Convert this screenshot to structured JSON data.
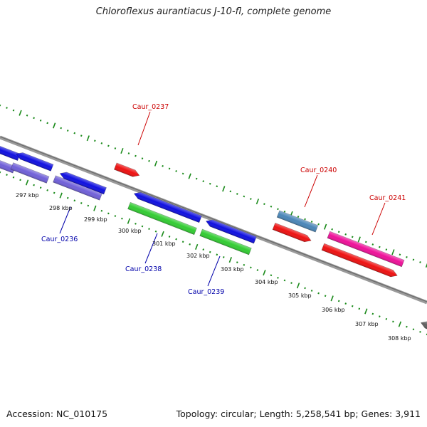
{
  "title": "Chloroflexus aurantiacus J-10-fl, complete genome",
  "footer": {
    "accession": "Accession: NC_010175",
    "summary": "Topology: circular; Length: 5,258,541 bp; Genes: 3,911"
  },
  "colors": {
    "background": "#ffffff",
    "backbone": "#808080",
    "tick": "#1a8a1a",
    "forward_label": "#cc0000",
    "reverse_label": "#0000aa"
  },
  "scale": {
    "unit": "kbp",
    "labels": [
      "297 kbp",
      "298 kbp",
      "299 kbp",
      "300 kbp",
      "301 kbp",
      "302 kbp",
      "303 kbp",
      "304 kbp",
      "305 kbp",
      "306 kbp",
      "307 kbp",
      "308 kbp"
    ]
  },
  "gene_labels": [
    {
      "name": "Caur_0237",
      "strand": "forward"
    },
    {
      "name": "Caur_0240",
      "strand": "forward"
    },
    {
      "name": "Caur_0241",
      "strand": "forward"
    },
    {
      "name": "Caur_0236",
      "strand": "reverse"
    },
    {
      "name": "Caur_0238",
      "strand": "reverse"
    },
    {
      "name": "Caur_0239",
      "strand": "reverse"
    }
  ],
  "features": [
    {
      "id": "f-blue-1",
      "color": "#1010e0",
      "direction": "left"
    },
    {
      "id": "f-purple-1",
      "color": "#7060d8",
      "direction": "none"
    },
    {
      "id": "f-blue-2",
      "color": "#1010e0",
      "direction": "left"
    },
    {
      "id": "f-purple-2",
      "color": "#7060d8",
      "direction": "none"
    },
    {
      "id": "f-blue-3",
      "color": "#1010e0",
      "direction": "left"
    },
    {
      "id": "f-purple-3",
      "color": "#7060d8",
      "direction": "none"
    },
    {
      "id": "f-red-0237",
      "color": "#ee1111",
      "direction": "right"
    },
    {
      "id": "f-blue-0238",
      "color": "#1010e0",
      "direction": "left"
    },
    {
      "id": "f-green-0238",
      "color": "#33cc33",
      "direction": "none"
    },
    {
      "id": "f-blue-0239",
      "color": "#1010e0",
      "direction": "left"
    },
    {
      "id": "f-green-0239",
      "color": "#33cc33",
      "direction": "none"
    },
    {
      "id": "f-steel-0240",
      "color": "#4a86b8",
      "direction": "none"
    },
    {
      "id": "f-red-0240",
      "color": "#ee1111",
      "direction": "right"
    },
    {
      "id": "f-pink-0241",
      "color": "#ee1199",
      "direction": "none"
    },
    {
      "id": "f-red-0241",
      "color": "#ee1111",
      "direction": "right"
    },
    {
      "id": "f-grey-end",
      "color": "#606060",
      "direction": "left"
    }
  ]
}
